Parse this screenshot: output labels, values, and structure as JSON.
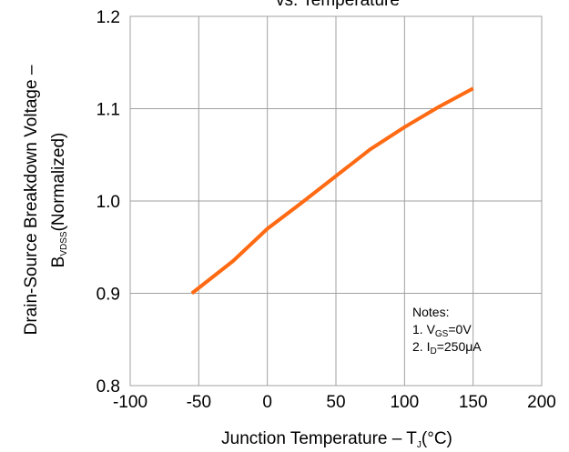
{
  "chart_data": {
    "type": "line",
    "title": "vs. Temperature",
    "xlabel": {
      "main": "Junction Temperature  –  T",
      "sub": "J",
      "unit": "(°C)"
    },
    "ylabel": {
      "line1": "Drain-Source Breakdown Voltage –",
      "line2_main": "B",
      "line2_sub": "VDSS",
      "line2_rest": "(Normalized)"
    },
    "xlim": [
      -100,
      200
    ],
    "ylim": [
      0.8,
      1.2
    ],
    "x_ticks": [
      "-100",
      "-50",
      "0",
      "50",
      "100",
      "150",
      "200"
    ],
    "y_ticks": [
      "0.8",
      "0.9",
      "1.0",
      "1.1",
      "1.2"
    ],
    "grid": true,
    "series": [
      {
        "color": "#FF6A13",
        "x": [
          -55,
          -25,
          0,
          25,
          50,
          75,
          100,
          125,
          150
        ],
        "y": [
          0.9,
          0.935,
          0.97,
          0.998,
          1.027,
          1.056,
          1.08,
          1.102,
          1.122
        ]
      }
    ],
    "notes": {
      "heading": "Notes:",
      "line1": {
        "prefix": "1. V",
        "sub": "GS",
        "rest": "=0V"
      },
      "line2": {
        "prefix": "2. I",
        "sub": "D",
        "rest": "=250μA"
      }
    }
  }
}
